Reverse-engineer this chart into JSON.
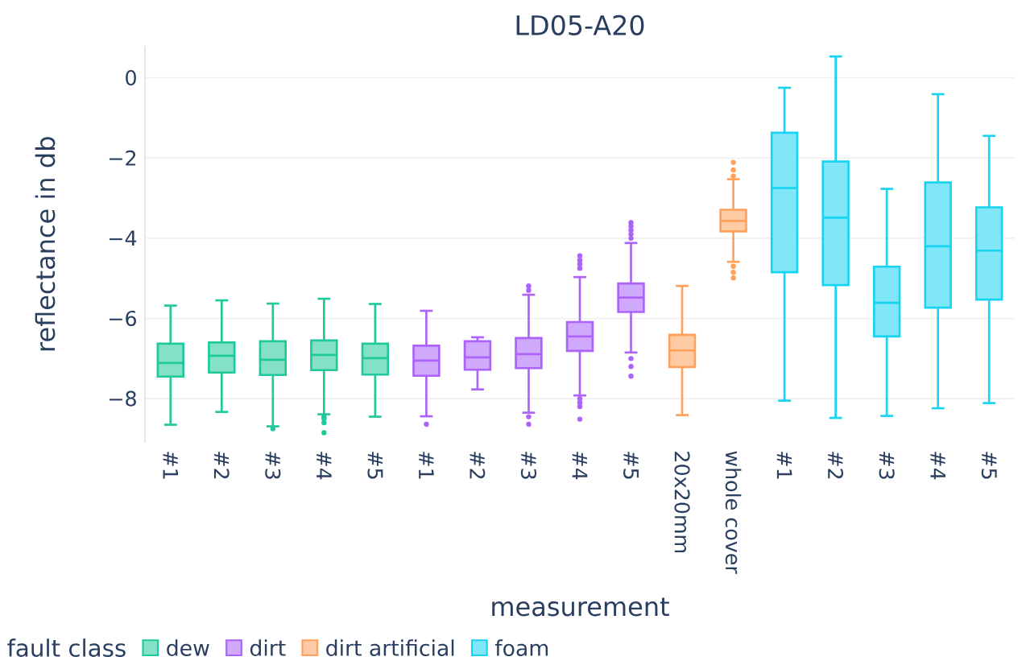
{
  "chart_data": {
    "type": "box",
    "title": "LD05-A20",
    "xlabel": "measurement",
    "ylabel": "reflectance in db",
    "legend_title": "fault class",
    "legend": "bottom",
    "grid": "y",
    "categories": [
      "#1",
      "#2",
      "#3",
      "#4",
      "#5",
      "#1",
      "#2",
      "#3",
      "#4",
      "#5",
      "20x20mm",
      "whole cover",
      "#1",
      "#2",
      "#3",
      "#4",
      "#5"
    ],
    "ylim": [
      -9.1,
      0.8
    ],
    "yticks": [
      {
        "value": -8,
        "label": "−8"
      },
      {
        "value": -6,
        "label": "−6"
      },
      {
        "value": -4,
        "label": "−4"
      },
      {
        "value": -2,
        "label": "−2"
      },
      0
    ],
    "series": [
      {
        "name": "dew",
        "color": "#1fc99a",
        "boxes": [
          {
            "low": -8.65,
            "q1": -7.45,
            "median": -7.11,
            "q3": -6.63,
            "high": -5.68
          },
          {
            "low": -8.33,
            "q1": -7.35,
            "median": -6.93,
            "q3": -6.6,
            "high": -5.55
          },
          {
            "low": -8.69,
            "q1": -7.41,
            "median": -7.03,
            "q3": -6.57,
            "high": -5.63,
            "outliers": [
              -8.75
            ]
          },
          {
            "low": -8.39,
            "q1": -7.29,
            "median": -6.91,
            "q3": -6.55,
            "high": -5.51,
            "outliers": [
              -8.45,
              -8.5,
              -8.6,
              -8.85
            ]
          },
          {
            "low": -8.45,
            "q1": -7.4,
            "median": -6.99,
            "q3": -6.63,
            "high": -5.64
          },
          null,
          null,
          null,
          null,
          null,
          null,
          null,
          null,
          null,
          null,
          null,
          null
        ]
      },
      {
        "name": "dirt",
        "color": "#ab63fa",
        "boxes": [
          null,
          null,
          null,
          null,
          null,
          {
            "low": -8.44,
            "q1": -7.43,
            "median": -7.05,
            "q3": -6.68,
            "high": -5.81,
            "outliers": [
              -8.64
            ]
          },
          {
            "low": -7.77,
            "q1": -7.28,
            "median": -6.97,
            "q3": -6.57,
            "high": -6.47
          },
          {
            "low": -8.35,
            "q1": -7.24,
            "median": -6.89,
            "q3": -6.49,
            "high": -5.41,
            "outliers": [
              -5.19,
              -5.3,
              -8.45,
              -8.64
            ]
          },
          {
            "low": -7.92,
            "q1": -6.81,
            "median": -6.45,
            "q3": -6.09,
            "high": -4.97,
            "outliers": [
              -4.44,
              -4.55,
              -4.65,
              -4.75,
              -8.0,
              -8.1,
              -8.2,
              -8.51
            ]
          },
          {
            "low": -6.85,
            "q1": -5.84,
            "median": -5.48,
            "q3": -5.13,
            "high": -4.12,
            "outliers": [
              -3.61,
              -3.7,
              -3.8,
              -3.9,
              -4.0,
              -7.0,
              -7.2,
              -7.44
            ]
          },
          null,
          null,
          null,
          null,
          null,
          null,
          null
        ]
      },
      {
        "name": "dirt artificial",
        "color": "#ffa15a",
        "boxes": [
          null,
          null,
          null,
          null,
          null,
          null,
          null,
          null,
          null,
          null,
          {
            "low": -8.41,
            "q1": -7.21,
            "median": -6.8,
            "q3": -6.41,
            "high": -5.19
          },
          {
            "low": -4.59,
            "q1": -3.83,
            "median": -3.57,
            "q3": -3.29,
            "high": -2.53,
            "outliers": [
              -2.11,
              -2.3,
              -2.45,
              -4.7,
              -4.85,
              -4.99
            ]
          },
          null,
          null,
          null,
          null,
          null
        ]
      },
      {
        "name": "foam",
        "color": "#19d3f3",
        "boxes": [
          null,
          null,
          null,
          null,
          null,
          null,
          null,
          null,
          null,
          null,
          null,
          null,
          {
            "low": -8.05,
            "q1": -4.85,
            "median": -2.75,
            "q3": -1.37,
            "high": -0.25
          },
          {
            "low": -8.48,
            "q1": -5.17,
            "median": -3.49,
            "q3": -2.09,
            "high": 0.53
          },
          {
            "low": -8.43,
            "q1": -6.45,
            "median": -5.61,
            "q3": -4.71,
            "high": -2.77
          },
          {
            "low": -8.24,
            "q1": -5.73,
            "median": -4.2,
            "q3": -2.61,
            "high": -0.41
          },
          {
            "low": -8.11,
            "q1": -5.53,
            "median": -4.31,
            "q3": -3.23,
            "high": -1.45
          }
        ]
      }
    ]
  }
}
